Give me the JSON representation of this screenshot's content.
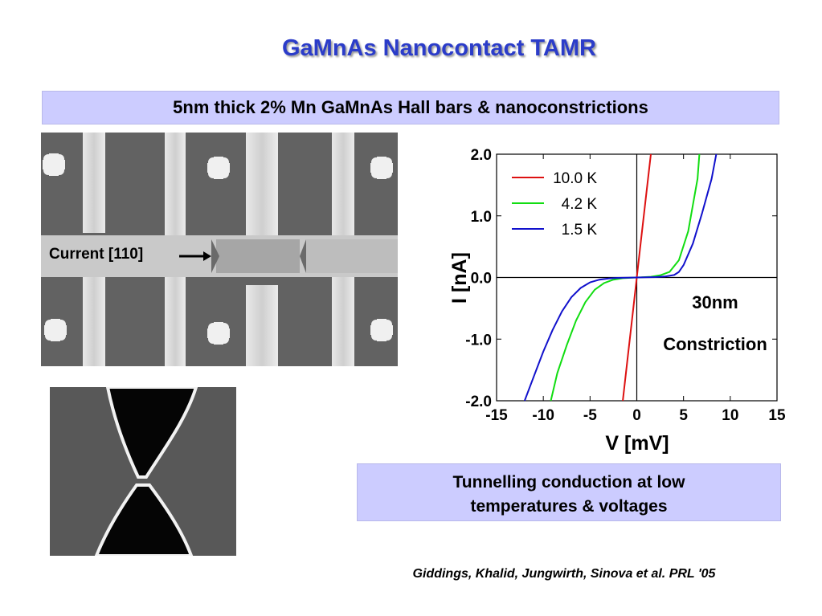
{
  "slide": {
    "title": "GaMnAs Nanocontact TAMR",
    "subtitle": "5nm thick 2% Mn GaMnAs Hall bars & nanoconstrictions",
    "current_label": "Current [110]",
    "conclusion_line1": "Tunnelling conduction at low",
    "conclusion_line2": "temperatures & voltages",
    "citation": "Giddings, Khalid, Jungwirth, Sinova et al. PRL '05"
  },
  "colors": {
    "title": "#2b3cc9",
    "box_fill": "#ccccff",
    "series_10K": "#dd1111",
    "series_4K": "#11dd11",
    "series_1K": "#1111cc"
  },
  "chart_data": {
    "type": "line",
    "xlabel": "V [mV]",
    "ylabel": "I [nA]",
    "xlim": [
      -15,
      15
    ],
    "ylim": [
      -2.0,
      2.0
    ],
    "xticks": [
      -15,
      -10,
      -5,
      0,
      5,
      10,
      15
    ],
    "yticks": [
      -2.0,
      -1.0,
      0.0,
      1.0,
      2.0
    ],
    "ytick_labels": [
      "-2.0",
      "-1.0",
      "0.0",
      "1.0",
      "2.0"
    ],
    "legend_position": "top-left",
    "annotation_line1": "30nm",
    "annotation_line2": "Constriction",
    "series": [
      {
        "name": "10.0 K",
        "x": [
          -1.5,
          -1,
          -0.5,
          0,
          0.5,
          1,
          1.5
        ],
        "y": [
          -2.0,
          -1.33,
          -0.67,
          0.0,
          0.67,
          1.33,
          2.0
        ]
      },
      {
        "name": "4.2 K",
        "x": [
          -9.2,
          -8.5,
          -7.5,
          -6.5,
          -5.5,
          -4.5,
          -3.5,
          -2.5,
          -1.5,
          -0.5,
          0,
          0.5,
          1.5,
          2.5,
          3.5,
          4.5,
          5.5,
          6.5,
          6.7
        ],
        "y": [
          -2.0,
          -1.55,
          -1.1,
          -0.7,
          -0.4,
          -0.2,
          -0.09,
          -0.035,
          -0.012,
          -0.003,
          0.0,
          0.003,
          0.012,
          0.035,
          0.09,
          0.28,
          0.75,
          1.6,
          2.0
        ]
      },
      {
        "name": "1.5 K",
        "x": [
          -12,
          -11,
          -10,
          -9,
          -8,
          -7,
          -6,
          -5,
          -4,
          -3,
          -2,
          -1,
          0,
          1,
          2,
          3,
          4,
          4.5,
          5,
          6,
          7,
          8,
          8.5
        ],
        "y": [
          -2.0,
          -1.6,
          -1.2,
          -0.85,
          -0.55,
          -0.32,
          -0.17,
          -0.08,
          -0.035,
          -0.015,
          -0.006,
          -0.002,
          0.0,
          0.002,
          0.006,
          0.015,
          0.04,
          0.09,
          0.2,
          0.55,
          1.05,
          1.6,
          2.0
        ]
      }
    ]
  }
}
